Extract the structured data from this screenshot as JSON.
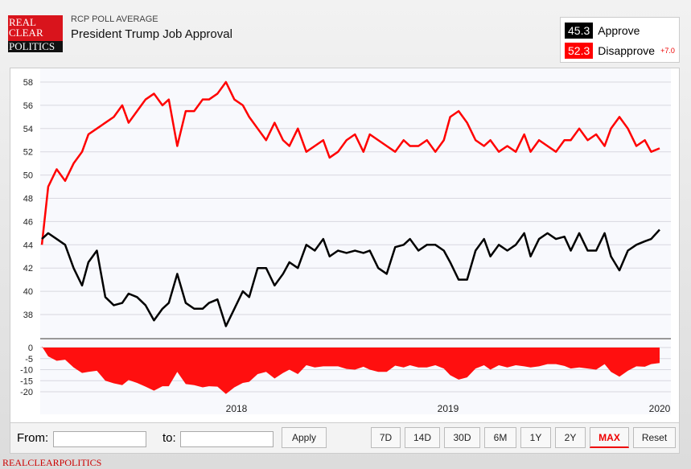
{
  "header": {
    "logo_text": [
      "REAL",
      "CLEAR",
      "POLITICS"
    ],
    "subtitle": "RCP POLL AVERAGE",
    "title": "President Trump Job Approval"
  },
  "legend": {
    "approve_value": "45.3",
    "approve_label": "Approve",
    "disapprove_value": "52.3",
    "disapprove_label": "Disapprove",
    "spread": "+7.0"
  },
  "colors": {
    "approve": "#000000",
    "disapprove": "#ff0000",
    "spread": "#ff0f0f"
  },
  "controls": {
    "from_label": "From:",
    "to_label": "to:",
    "from_value": "",
    "to_value": "",
    "apply": "Apply",
    "ranges": [
      "7D",
      "14D",
      "30D",
      "6M",
      "1Y",
      "2Y",
      "MAX",
      "Reset"
    ],
    "active": "MAX"
  },
  "footer": "REALCLEARPOLITICS",
  "chart_data": {
    "type": "line",
    "x": [
      2017.08,
      2017.11,
      2017.15,
      2017.19,
      2017.23,
      2017.27,
      2017.3,
      2017.34,
      2017.38,
      2017.42,
      2017.46,
      2017.49,
      2017.53,
      2017.57,
      2017.61,
      2017.65,
      2017.68,
      2017.72,
      2017.76,
      2017.8,
      2017.84,
      2017.87,
      2017.91,
      2017.95,
      2017.99,
      2018.03,
      2018.06,
      2018.1,
      2018.14,
      2018.18,
      2018.22,
      2018.25,
      2018.29,
      2018.33,
      2018.37,
      2018.41,
      2018.44,
      2018.48,
      2018.52,
      2018.56,
      2018.6,
      2018.63,
      2018.67,
      2018.71,
      2018.75,
      2018.79,
      2018.82,
      2018.86,
      2018.9,
      2018.94,
      2018.98,
      2019.01,
      2019.05,
      2019.09,
      2019.13,
      2019.17,
      2019.2,
      2019.24,
      2019.28,
      2019.32,
      2019.36,
      2019.39,
      2019.43,
      2019.47,
      2019.51,
      2019.55,
      2019.58,
      2019.62,
      2019.66,
      2019.7,
      2019.74,
      2019.77,
      2019.81,
      2019.85,
      2019.89,
      2019.93,
      2019.96,
      2020.0
    ],
    "series": [
      {
        "name": "Approve",
        "values": [
          44.5,
          45,
          44.5,
          44,
          42,
          40.5,
          42.5,
          43.5,
          39.5,
          38.8,
          39,
          39.8,
          39.5,
          38.8,
          37.5,
          38.5,
          39,
          41.5,
          39,
          38.5,
          38.5,
          39,
          39.3,
          37,
          38.5,
          40,
          39.5,
          42,
          42,
          40.5,
          41.5,
          42.5,
          42,
          44,
          43.5,
          44.5,
          43,
          43.5,
          43.3,
          43.5,
          43.3,
          43.5,
          42,
          41.5,
          43.8,
          44,
          44.5,
          43.5,
          44,
          44,
          43.5,
          42.5,
          41,
          41,
          43.5,
          44.5,
          43,
          44,
          43.5,
          44,
          45,
          43,
          44.5,
          45,
          44.5,
          44.7,
          43.5,
          45,
          43.5,
          43.5,
          45,
          43,
          41.8,
          43.5,
          44,
          44.3,
          44.5,
          45.3
        ]
      },
      {
        "name": "Disapprove",
        "values": [
          44,
          49,
          50.5,
          49.5,
          51,
          52,
          53.5,
          54,
          54.5,
          55,
          56,
          54.5,
          55.5,
          56.5,
          57,
          56,
          56.5,
          52.5,
          55.5,
          55.5,
          56.5,
          56.5,
          57,
          58,
          56.5,
          56,
          55,
          54,
          53,
          54.5,
          53,
          52.5,
          54,
          52,
          52.5,
          53,
          51.5,
          52,
          53,
          53.5,
          52,
          53.5,
          53,
          52.5,
          52,
          53,
          52.5,
          52.5,
          53,
          52,
          53,
          55,
          55.5,
          54.5,
          53,
          52.5,
          53,
          52,
          52.5,
          52,
          53.5,
          52,
          53,
          52.5,
          52,
          53,
          53,
          54,
          53,
          53.5,
          52.5,
          54,
          55,
          54,
          52.5,
          53,
          52,
          52.3
        ]
      }
    ],
    "y_ticks": [
      58,
      56,
      54,
      52,
      50,
      48,
      46,
      44,
      42,
      40,
      38
    ],
    "ylim": [
      37,
      58.5
    ],
    "spread_ticks": [
      0,
      -5,
      -10,
      -15,
      -20
    ],
    "spread_ylim": [
      -22,
      0
    ],
    "x_ticks": [
      "2018",
      "2019",
      "2020"
    ],
    "grid": true
  }
}
